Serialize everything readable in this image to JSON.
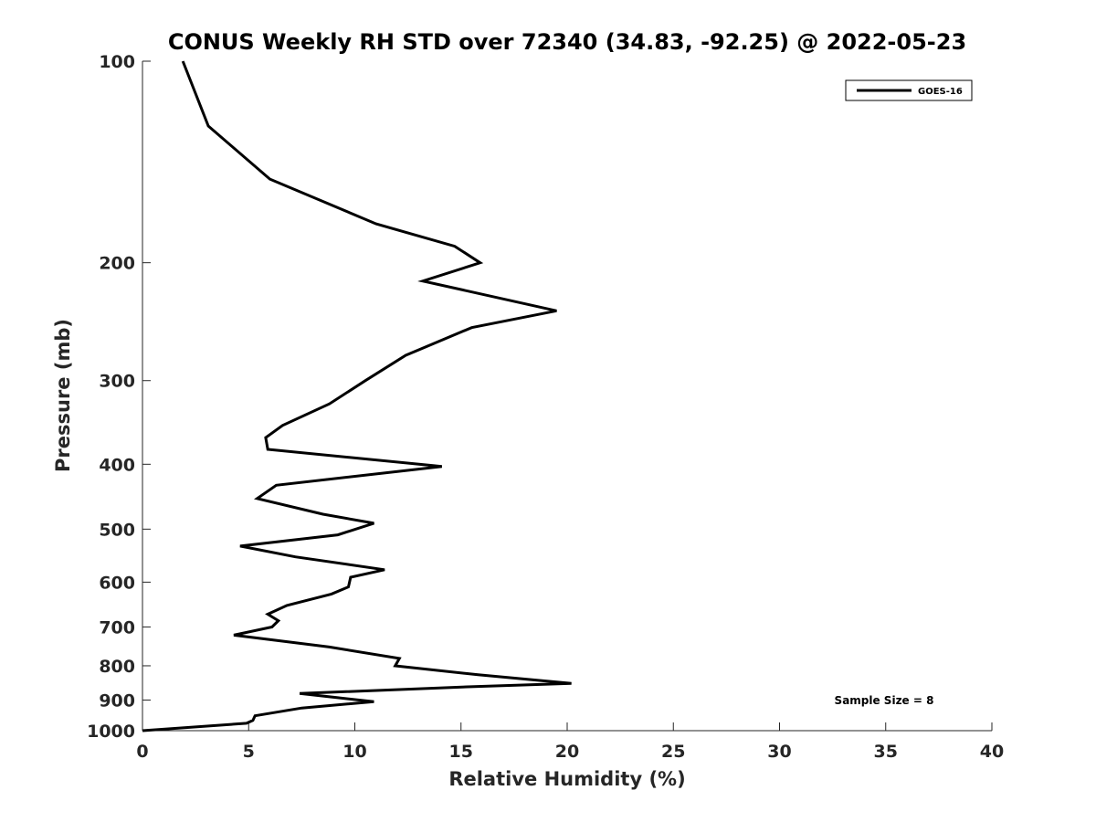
{
  "chart_data": {
    "type": "line",
    "title": "CONUS Weekly RH STD over 72340 (34.83, -92.25) @ 2022-05-23",
    "xlabel": "Relative Humidity (%)",
    "ylabel": "Pressure (mb)",
    "xlim": [
      0,
      40
    ],
    "ylim": [
      100,
      1000
    ],
    "y_scale": "log",
    "y_reversed": true,
    "x_ticks": [
      0,
      5,
      10,
      15,
      20,
      25,
      30,
      35,
      40
    ],
    "y_ticks": [
      100,
      200,
      300,
      400,
      500,
      600,
      700,
      800,
      900,
      1000
    ],
    "grid": false,
    "legend_position": "top-right",
    "annotation": "Sample Size = 8",
    "series": [
      {
        "name": "GOES-16",
        "color": "#000000",
        "points": [
          [
            1.9,
            100
          ],
          [
            3.1,
            125
          ],
          [
            6.0,
            150
          ],
          [
            11.0,
            175
          ],
          [
            14.7,
            189
          ],
          [
            15.9,
            200
          ],
          [
            13.2,
            213
          ],
          [
            19.5,
            236
          ],
          [
            15.5,
            250
          ],
          [
            12.4,
            275
          ],
          [
            10.5,
            300
          ],
          [
            8.8,
            325
          ],
          [
            6.6,
            350
          ],
          [
            5.8,
            365
          ],
          [
            5.9,
            380
          ],
          [
            14.1,
            403
          ],
          [
            6.3,
            430
          ],
          [
            5.4,
            450
          ],
          [
            8.5,
            475
          ],
          [
            10.9,
            490
          ],
          [
            9.2,
            510
          ],
          [
            4.6,
            530
          ],
          [
            7.2,
            550
          ],
          [
            11.4,
            575
          ],
          [
            9.8,
            590
          ],
          [
            9.7,
            610
          ],
          [
            8.9,
            625
          ],
          [
            6.8,
            650
          ],
          [
            5.9,
            670
          ],
          [
            6.4,
            685
          ],
          [
            6.1,
            700
          ],
          [
            4.3,
            720
          ],
          [
            8.8,
            750
          ],
          [
            12.1,
            780
          ],
          [
            11.9,
            800
          ],
          [
            15.8,
            825
          ],
          [
            20.2,
            850
          ],
          [
            15.3,
            860
          ],
          [
            7.4,
            880
          ],
          [
            10.9,
            905
          ],
          [
            7.5,
            925
          ],
          [
            5.3,
            950
          ],
          [
            5.2,
            965
          ],
          [
            4.9,
            975
          ],
          [
            0.0,
            1000
          ]
        ]
      }
    ]
  }
}
